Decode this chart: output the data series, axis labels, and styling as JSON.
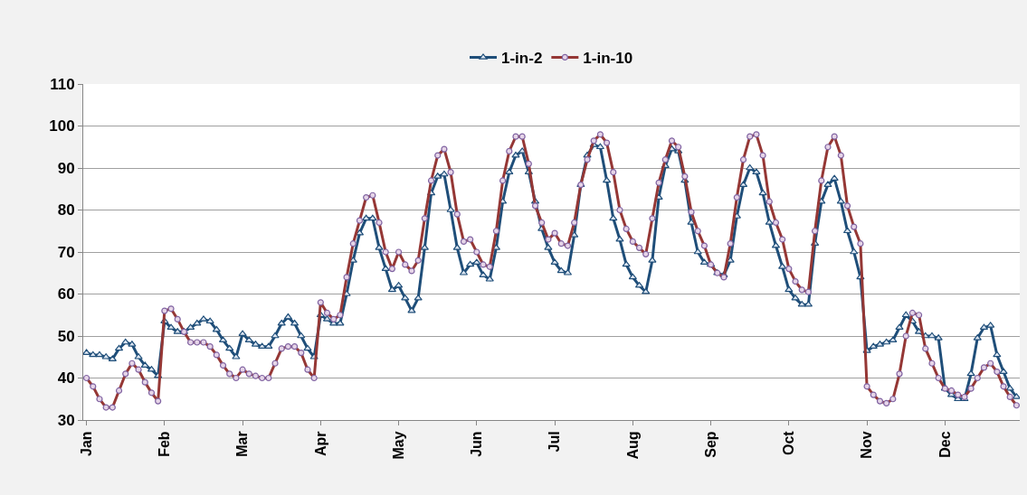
{
  "chart_data": {
    "type": "line",
    "categories": [
      "Jan",
      null,
      null,
      null,
      null,
      null,
      null,
      null,
      null,
      null,
      null,
      null,
      "Feb",
      null,
      null,
      null,
      null,
      null,
      null,
      null,
      null,
      null,
      null,
      null,
      "Mar",
      null,
      null,
      null,
      null,
      null,
      null,
      null,
      null,
      null,
      null,
      null,
      "Apr",
      null,
      null,
      null,
      null,
      null,
      null,
      null,
      null,
      null,
      null,
      null,
      "May",
      null,
      null,
      null,
      null,
      null,
      null,
      null,
      null,
      null,
      null,
      null,
      "Jun",
      null,
      null,
      null,
      null,
      null,
      null,
      null,
      null,
      null,
      null,
      null,
      "Jul",
      null,
      null,
      null,
      null,
      null,
      null,
      null,
      null,
      null,
      null,
      null,
      "Aug",
      null,
      null,
      null,
      null,
      null,
      null,
      null,
      null,
      null,
      null,
      null,
      "Sep",
      null,
      null,
      null,
      null,
      null,
      null,
      null,
      null,
      null,
      null,
      null,
      "Oct",
      null,
      null,
      null,
      null,
      null,
      null,
      null,
      null,
      null,
      null,
      null,
      "Nov",
      null,
      null,
      null,
      null,
      null,
      null,
      null,
      null,
      null,
      null,
      null,
      "Dec",
      null,
      null,
      null,
      null,
      null,
      null,
      null,
      null,
      null,
      null,
      null
    ],
    "series": [
      {
        "name": "1-in-2",
        "color": "#1f4e79",
        "marker": "triangle",
        "values": [
          46,
          45.5,
          45.5,
          45,
          44.5,
          47,
          48.5,
          48,
          45,
          43,
          42,
          40.5,
          53.5,
          52,
          51,
          51,
          52,
          53,
          54,
          53.5,
          51.5,
          49,
          47,
          45,
          50.5,
          49,
          48,
          47.5,
          47.5,
          50,
          53,
          54.5,
          53,
          50,
          47,
          45,
          55,
          54,
          53,
          53,
          60,
          68,
          74.5,
          78,
          78,
          71,
          66,
          61,
          62,
          59,
          56,
          59,
          71,
          84,
          88,
          88.5,
          80,
          71,
          65,
          67,
          67.5,
          64.5,
          63.5,
          71,
          82,
          89,
          93,
          94,
          89,
          82,
          75.5,
          71,
          67.5,
          65.5,
          65,
          74,
          86,
          93,
          95.5,
          95,
          87,
          78,
          73,
          67,
          64,
          62,
          60.5,
          68,
          83,
          90.5,
          94.5,
          94,
          87,
          77,
          70,
          67.5,
          67,
          65,
          64.5,
          68,
          78.5,
          86,
          90,
          89,
          84,
          77,
          71.5,
          66.5,
          61,
          59,
          57.5,
          57.5,
          72,
          82,
          86,
          87.5,
          82,
          75,
          70,
          64,
          46.5,
          47.5,
          48,
          48.5,
          49,
          52,
          55,
          53.5,
          51,
          50,
          50,
          49.5,
          37.5,
          36,
          35,
          35,
          41,
          49.5,
          52,
          52.5,
          45.5,
          41.5,
          37.5,
          35.5
        ]
      },
      {
        "name": "1-in-10",
        "color": "#953735",
        "marker": "circle",
        "values": [
          40,
          38,
          35,
          33,
          33,
          37,
          41,
          43.5,
          42,
          39,
          36.5,
          34.5,
          56,
          56.5,
          54,
          51,
          48.5,
          48.5,
          48.5,
          47.5,
          45.5,
          43,
          41,
          40,
          42,
          41,
          40.5,
          40,
          40,
          43.5,
          47,
          47.5,
          47.5,
          46,
          42,
          40,
          58,
          55.5,
          54,
          55,
          64,
          72,
          77.5,
          83,
          83.5,
          77,
          70,
          66,
          70,
          67,
          65.5,
          68,
          78,
          87,
          93,
          94.5,
          89,
          79,
          72.5,
          73,
          70,
          67,
          66.5,
          75,
          87,
          94,
          97.5,
          97.5,
          91,
          81,
          77,
          73,
          74.5,
          72,
          71.5,
          77,
          86,
          92,
          96.5,
          98,
          96,
          89,
          80,
          75.5,
          72.5,
          71,
          69.5,
          78,
          86.5,
          92,
          96.5,
          95,
          88,
          79.5,
          75,
          71.5,
          67,
          65,
          64,
          72,
          83,
          92,
          97.5,
          98,
          93,
          82,
          77,
          73,
          66,
          63,
          61,
          60.5,
          75,
          87,
          95,
          97.5,
          93,
          81,
          76,
          72,
          38,
          36,
          34.5,
          34,
          35,
          41,
          50,
          55.5,
          55,
          47,
          43.5,
          40,
          37.5,
          37,
          36,
          35.5,
          37.5,
          40,
          42.5,
          43.5,
          41.5,
          38,
          35.5,
          33.5
        ]
      }
    ],
    "ylim": [
      30,
      110
    ],
    "yticks": [
      30,
      40,
      50,
      60,
      70,
      80,
      90,
      100,
      110
    ],
    "grid": "y",
    "legend": "top",
    "line_style": "solid"
  }
}
